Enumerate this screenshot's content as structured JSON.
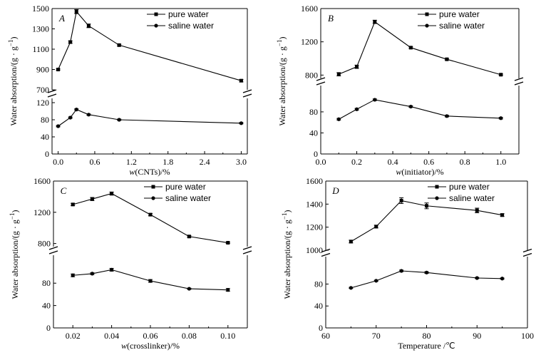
{
  "figure": {
    "background": "#ffffff",
    "line_color": "#000000"
  },
  "chart_data": [
    {
      "panel_label": "A",
      "type": "line",
      "xlabel_italic": "w",
      "xlabel_rest": "(CNTs)/%",
      "ylabel": "Water absorption/(g · g",
      "ylabel_sup": "−1",
      "ylabel_close": ")",
      "xlim": [
        -0.1,
        3.1
      ],
      "x_ticks": [
        0.0,
        0.6,
        1.2,
        1.8,
        2.4,
        3.0
      ],
      "x_tick_labels": [
        "0.0",
        "0.6",
        "1.2",
        "1.8",
        "2.4",
        "3.0"
      ],
      "y_upper_range": [
        700,
        1500
      ],
      "y_upper_ticks": [
        700,
        900,
        1100,
        1300,
        1500
      ],
      "y_lower_range": [
        0,
        130
      ],
      "y_lower_ticks": [
        0,
        40,
        80,
        120
      ],
      "legend_position": "top-right",
      "series": [
        {
          "name": "pure water",
          "x": [
            0,
            0.2,
            0.3,
            0.5,
            1.0,
            3.0
          ],
          "y": [
            900,
            1170,
            1470,
            1330,
            1140,
            790
          ],
          "err": [
            6,
            12,
            20,
            18,
            8,
            12
          ]
        },
        {
          "name": "saline water",
          "x": [
            0,
            0.2,
            0.3,
            0.5,
            1.0,
            3.0
          ],
          "y": [
            65,
            85,
            104,
            92,
            80,
            72
          ],
          "err": [
            1.5,
            1.5,
            1.5,
            1.5,
            1.5,
            1.5
          ]
        }
      ]
    },
    {
      "panel_label": "B",
      "type": "line",
      "xlabel_italic": "w",
      "xlabel_rest": "(initiator)/%",
      "ylabel": "Water absorption/(g · g",
      "ylabel_sup": "−1",
      "ylabel_close": ")",
      "xlim": [
        0.0,
        1.1
      ],
      "x_ticks": [
        0.0,
        0.2,
        0.4,
        0.6,
        0.8,
        1.0
      ],
      "x_tick_labels": [
        "0.0",
        "0.2",
        "0.4",
        "0.6",
        "0.8",
        "1.0"
      ],
      "y_upper_range": [
        760,
        1600
      ],
      "y_upper_ticks": [
        800,
        1200,
        1600
      ],
      "y_lower_range": [
        0,
        130
      ],
      "y_lower_ticks": [
        0,
        40,
        80
      ],
      "legend_position": "top-right",
      "series": [
        {
          "name": "pure water",
          "x": [
            0.1,
            0.2,
            0.3,
            0.5,
            0.7,
            1.0
          ],
          "y": [
            810,
            900,
            1440,
            1130,
            990,
            805
          ],
          "err": [
            20,
            20,
            20,
            10,
            8,
            8
          ]
        },
        {
          "name": "saline water",
          "x": [
            0.1,
            0.2,
            0.3,
            0.5,
            0.7,
            1.0
          ],
          "y": [
            66,
            85,
            103,
            90,
            72,
            68
          ],
          "err": [
            1.5,
            1.5,
            1.5,
            1.5,
            1.5,
            1.5
          ]
        }
      ]
    },
    {
      "panel_label": "C",
      "type": "line",
      "xlabel_italic": "w",
      "xlabel_rest": "(crosslinker)/%",
      "ylabel": "Water absorption/(g · g",
      "ylabel_sup": "−1",
      "ylabel_close": ")",
      "xlim": [
        0.01,
        0.11
      ],
      "x_ticks": [
        0.02,
        0.04,
        0.06,
        0.08,
        0.1
      ],
      "x_tick_labels": [
        "0.02",
        "0.04",
        "0.06",
        "0.08",
        "0.10"
      ],
      "y_upper_range": [
        760,
        1600
      ],
      "y_upper_ticks": [
        800,
        1200,
        1600
      ],
      "y_lower_range": [
        0,
        130
      ],
      "y_lower_ticks": [
        0,
        40,
        80
      ],
      "legend_position": "top-right",
      "series": [
        {
          "name": "pure water",
          "x": [
            0.02,
            0.03,
            0.04,
            0.06,
            0.08,
            0.1
          ],
          "y": [
            1300,
            1370,
            1440,
            1170,
            890,
            810
          ],
          "err": [
            15,
            20,
            20,
            15,
            10,
            8
          ]
        },
        {
          "name": "saline water",
          "x": [
            0.02,
            0.03,
            0.04,
            0.06,
            0.08,
            0.1
          ],
          "y": [
            94,
            97,
            104,
            84,
            70,
            68
          ],
          "err": [
            2.5,
            1.5,
            2.5,
            2.5,
            1,
            2.5
          ]
        }
      ]
    },
    {
      "panel_label": "D",
      "type": "line",
      "xlabel_italic": "",
      "xlabel_rest": "Temperature /℃",
      "ylabel": "Water absorption/(g · g",
      "ylabel_sup": "−1",
      "ylabel_close": ")",
      "xlim": [
        60,
        100
      ],
      "x_ticks": [
        60,
        70,
        80,
        90,
        100
      ],
      "x_tick_labels": [
        "60",
        "70",
        "80",
        "90",
        "100"
      ],
      "y_upper_range": [
        1000,
        1600
      ],
      "y_upper_ticks": [
        1000,
        1200,
        1400,
        1600
      ],
      "y_lower_range": [
        0,
        130
      ],
      "y_lower_ticks": [
        0,
        40,
        80
      ],
      "legend_position": "top-right",
      "series": [
        {
          "name": "pure water",
          "x": [
            65,
            70,
            75,
            80,
            90,
            95
          ],
          "y": [
            1075,
            1205,
            1430,
            1385,
            1345,
            1305
          ],
          "err": [
            12,
            12,
            25,
            25,
            20,
            12
          ]
        },
        {
          "name": "saline water",
          "x": [
            65,
            70,
            75,
            80,
            90,
            95
          ],
          "y": [
            73,
            86,
            104,
            101,
            91,
            90
          ],
          "err": [
            1,
            1,
            1.5,
            1.5,
            1,
            1
          ]
        }
      ]
    }
  ]
}
